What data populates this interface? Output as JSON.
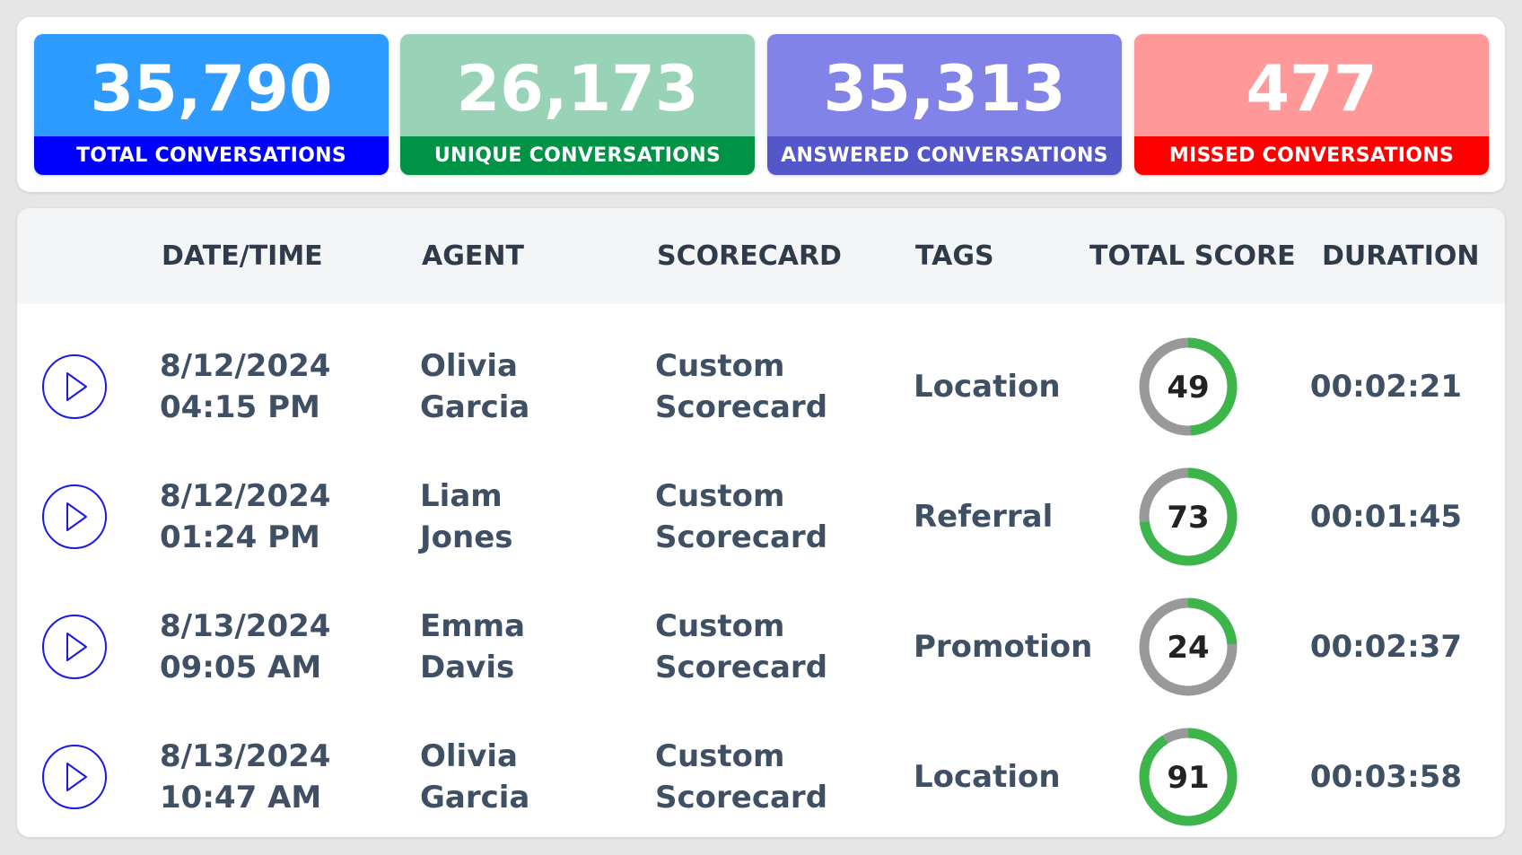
{
  "stats": [
    {
      "value": "35,790",
      "label": "TOTAL CONVERSATIONS",
      "top": "#2d9bff",
      "bottom": "#0000ff"
    },
    {
      "value": "26,173",
      "label": "UNIQUE CONVERSATIONS",
      "top": "#99d3b7",
      "bottom": "#009245"
    },
    {
      "value": "35,313",
      "label": "ANSWERED CONVERSATIONS",
      "top": "#8183e8",
      "bottom": "#5457c9"
    },
    {
      "value": "477",
      "label": "MISSED CONVERSATIONS",
      "top": "#ff9999",
      "bottom": "#ff0000"
    }
  ],
  "table": {
    "headers": [
      "DATE/TIME",
      "AGENT",
      "SCORECARD",
      "TAGS",
      "TOTAL SCORE",
      "DURATION"
    ],
    "rows": [
      {
        "date": "8/12/2024",
        "time": "04:15 PM",
        "agent_first": "Olivia",
        "agent_last": "Garcia",
        "sc1": "Custom",
        "sc2": "Scorecard",
        "tag": "Location",
        "score": 49,
        "score_text": "49",
        "duration": "00:02:21"
      },
      {
        "date": "8/12/2024",
        "time": "01:24 PM",
        "agent_first": "Liam",
        "agent_last": "Jones",
        "sc1": "Custom",
        "sc2": "Scorecard",
        "tag": "Referral",
        "score": 73,
        "score_text": "73",
        "duration": "00:01:45"
      },
      {
        "date": "8/13/2024",
        "time": "09:05 AM",
        "agent_first": "Emma",
        "agent_last": "Davis",
        "sc1": "Custom",
        "sc2": "Scorecard",
        "tag": "Promotion",
        "score": 24,
        "score_text": "24",
        "duration": "00:02:37"
      },
      {
        "date": "8/13/2024",
        "time": "10:47 AM",
        "agent_first": "Olivia",
        "agent_last": "Garcia",
        "sc1": "Custom",
        "sc2": "Scorecard",
        "tag": "Location",
        "score": 91,
        "score_text": "91",
        "duration": "00:03:58"
      }
    ]
  },
  "colors": {
    "score_fill": "#3cb54a",
    "score_track": "#999999",
    "play": "#1a1ae6"
  }
}
